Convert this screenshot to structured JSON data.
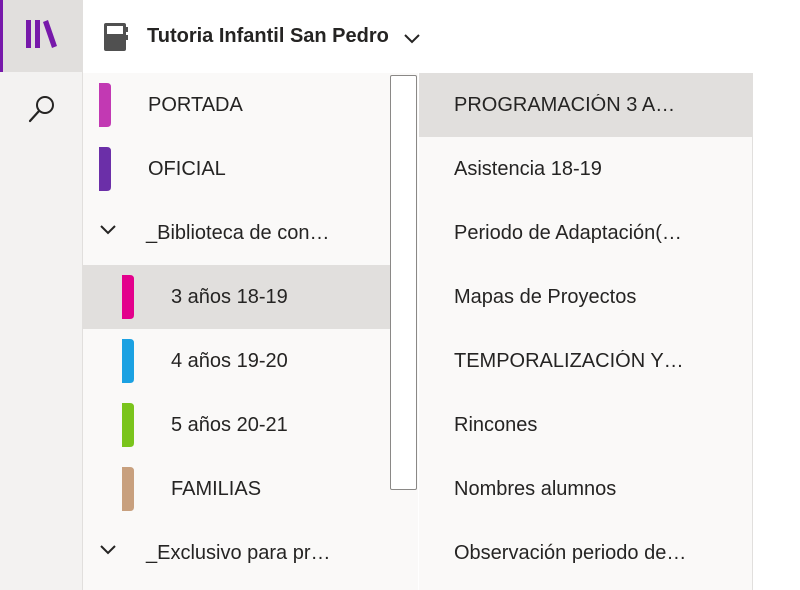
{
  "app": {
    "accent_color": "#7719aa",
    "rail": {
      "notebooks_icon": "notebooks-library-icon",
      "search_icon": "search-icon"
    }
  },
  "header": {
    "notebook_icon": "notebook-icon",
    "title": "Tutoria Infantil San Pedro",
    "dropdown_icon": "chevron-down-icon"
  },
  "sections": [
    {
      "label": "PORTADA",
      "color": "#c239b3",
      "kind": "section"
    },
    {
      "label": "OFICIAL",
      "color": "#6b2fa8",
      "kind": "section"
    },
    {
      "label": "_Biblioteca de con…",
      "kind": "group",
      "icon": "chevron-down-icon"
    },
    {
      "label": "3 años 18-19",
      "color": "#e3008c",
      "kind": "section",
      "selected": true
    },
    {
      "label": "4 años 19-20",
      "color": "#1ba1e2",
      "kind": "section"
    },
    {
      "label": "5 años 20-21",
      "color": "#7ac41c",
      "kind": "section"
    },
    {
      "label": "FAMILIAS",
      "color": "#c8a07e",
      "kind": "section"
    },
    {
      "label": "_Exclusivo para pr…",
      "kind": "group",
      "icon": "chevron-down-icon"
    }
  ],
  "pages": [
    {
      "label": "PROGRAMACIÓN 3 A…",
      "selected": true
    },
    {
      "label": "Asistencia 18-19"
    },
    {
      "label": "Periodo de Adaptación(…"
    },
    {
      "label": "Mapas de Proyectos"
    },
    {
      "label": "TEMPORALIZACIÓN Y…"
    },
    {
      "label": "Rincones"
    },
    {
      "label": "Nombres alumnos"
    },
    {
      "label": "Observación periodo de…"
    }
  ]
}
